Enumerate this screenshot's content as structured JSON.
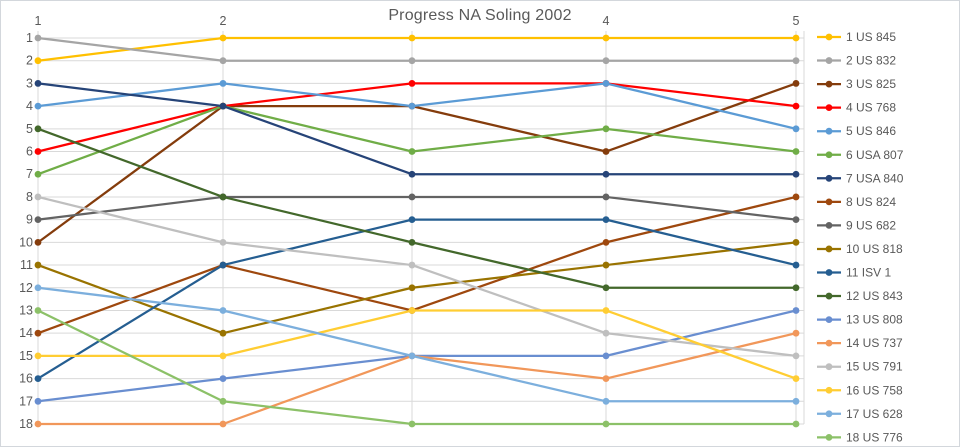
{
  "chart_data": {
    "type": "line",
    "variant": "rank-bump-progress",
    "title": "Progress NA Soling 2002",
    "xlabel": "",
    "ylabel": "",
    "x": [
      1,
      2,
      3,
      4,
      5
    ],
    "x_ticks_visible": [
      {
        "race": 1,
        "label": "1"
      },
      {
        "race": 2,
        "label": "2"
      },
      {
        "race": 4,
        "label": "4"
      },
      {
        "race": 5,
        "label": "5"
      }
    ],
    "y_ticks": [
      "1",
      "2",
      "3",
      "4",
      "5",
      "6",
      "7",
      "8",
      "9",
      "10",
      "11",
      "12",
      "13",
      "14",
      "15",
      "16",
      "17",
      "18"
    ],
    "y_range": [
      1,
      18
    ],
    "y_inverted": true,
    "grid": true,
    "legend_position": "right",
    "text_color": "#595959",
    "grid_color": "#D9D9D9",
    "series": [
      {
        "final_rank": 1,
        "name": "1 US 845",
        "color": "#FFC000",
        "values": [
          2,
          1,
          1,
          1,
          1
        ]
      },
      {
        "final_rank": 2,
        "name": "2 US 832",
        "color": "#A5A5A5",
        "values": [
          1,
          2,
          2,
          2,
          2
        ]
      },
      {
        "final_rank": 3,
        "name": "3 US 825",
        "color": "#843C0C",
        "values": [
          10,
          4,
          4,
          6,
          3
        ]
      },
      {
        "final_rank": 4,
        "name": "4 US 768",
        "color": "#FF0000",
        "values": [
          6,
          4,
          3,
          3,
          4
        ]
      },
      {
        "final_rank": 5,
        "name": "5 US 846",
        "color": "#5B9BD5",
        "values": [
          4,
          3,
          4,
          3,
          5
        ]
      },
      {
        "final_rank": 6,
        "name": "6 USA 807",
        "color": "#70AD47",
        "values": [
          7,
          4,
          6,
          5,
          6
        ]
      },
      {
        "final_rank": 7,
        "name": "7 USA 840",
        "color": "#264478",
        "values": [
          3,
          4,
          7,
          7,
          7
        ]
      },
      {
        "final_rank": 8,
        "name": "8 US 824",
        "color": "#9E480E",
        "values": [
          14,
          11,
          13,
          10,
          8
        ]
      },
      {
        "final_rank": 9,
        "name": "9 US 682",
        "color": "#636363",
        "values": [
          9,
          8,
          8,
          8,
          9
        ]
      },
      {
        "final_rank": 10,
        "name": "10 US 818",
        "color": "#997300",
        "values": [
          11,
          14,
          12,
          11,
          10
        ]
      },
      {
        "final_rank": 11,
        "name": "11 ISV 1",
        "color": "#255E91",
        "values": [
          16,
          11,
          9,
          9,
          11
        ]
      },
      {
        "final_rank": 12,
        "name": "12 US 843",
        "color": "#43682B",
        "values": [
          5,
          8,
          10,
          12,
          12
        ]
      },
      {
        "final_rank": 13,
        "name": "13 US 808",
        "color": "#698ED0",
        "values": [
          17,
          16,
          15,
          15,
          13
        ]
      },
      {
        "final_rank": 14,
        "name": "14 US 737",
        "color": "#F1975A",
        "values": [
          18,
          18,
          15,
          16,
          14
        ]
      },
      {
        "final_rank": 15,
        "name": "15 US 791",
        "color": "#BFBFBF",
        "values": [
          8,
          10,
          11,
          14,
          15
        ]
      },
      {
        "final_rank": 16,
        "name": "16 US 758",
        "color": "#FFCD33",
        "values": [
          15,
          15,
          13,
          13,
          16
        ]
      },
      {
        "final_rank": 17,
        "name": "17 US 628",
        "color": "#7CAFDD",
        "values": [
          12,
          13,
          15,
          17,
          17
        ]
      },
      {
        "final_rank": 18,
        "name": "18 US 776",
        "color": "#8CC168",
        "values": [
          13,
          17,
          18,
          18,
          18
        ]
      }
    ]
  }
}
